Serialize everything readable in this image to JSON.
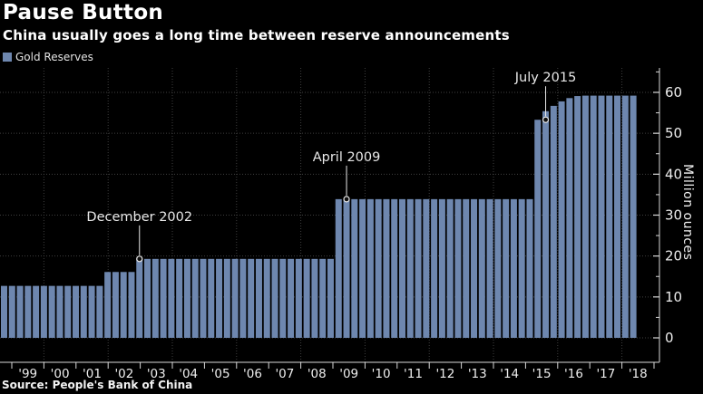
{
  "header": {
    "title": "Pause Button",
    "subtitle": "China usually goes a long time between reserve announcements"
  },
  "legend": {
    "label": "Gold Reserves"
  },
  "source": "Source: People's Bank of China",
  "colors": {
    "background": "#000000",
    "bar": "#6E87AF",
    "grid": "#3f3f3f",
    "axis": "#d9d9d9",
    "tick_label": "#ededed",
    "annotation": "#e8e8e8",
    "marker_fill": "#101010"
  },
  "chart_data": {
    "type": "bar",
    "title": "Pause Button",
    "subtitle": "China usually goes a long time between reserve announcements",
    "ylabel": "Million ounces",
    "ylim": [
      0,
      60
    ],
    "yticks": [
      0,
      10,
      20,
      30,
      40,
      50,
      60
    ],
    "grid": "dotted",
    "legend_position": "top-left",
    "frequency": "quarterly",
    "start_period": "1998-Q3",
    "end_period": "2018-Q3",
    "x_year_labels": [
      "'99",
      "'00",
      "'01",
      "'02",
      "'03",
      "'04",
      "'05",
      "'06",
      "'07",
      "'08",
      "'09",
      "'10",
      "'11",
      "'12",
      "'13",
      "'14",
      "'15",
      "'16",
      "'17",
      "'18"
    ],
    "series": [
      {
        "name": "Gold Reserves",
        "values": [
          12.7,
          12.7,
          12.7,
          12.7,
          12.7,
          12.7,
          12.7,
          12.7,
          12.7,
          12.7,
          12.7,
          12.7,
          12.7,
          16.1,
          16.1,
          16.1,
          16.1,
          19.3,
          19.3,
          19.3,
          19.3,
          19.3,
          19.3,
          19.3,
          19.3,
          19.3,
          19.3,
          19.3,
          19.3,
          19.3,
          19.3,
          19.3,
          19.3,
          19.3,
          19.3,
          19.3,
          19.3,
          19.3,
          19.3,
          19.3,
          19.3,
          19.3,
          33.9,
          33.9,
          33.9,
          33.9,
          33.9,
          33.9,
          33.9,
          33.9,
          33.9,
          33.9,
          33.9,
          33.9,
          33.9,
          33.9,
          33.9,
          33.9,
          33.9,
          33.9,
          33.9,
          33.9,
          33.9,
          33.9,
          33.9,
          33.9,
          33.9,
          53.3,
          55.4,
          56.7,
          57.8,
          58.6,
          59.1,
          59.2,
          59.2,
          59.2,
          59.2,
          59.2,
          59.2,
          59.2
        ]
      }
    ],
    "annotations": [
      {
        "label": "December 2002",
        "bar_index": 17,
        "value": 19.3
      },
      {
        "label": "April 2009",
        "bar_index": 43,
        "value": 33.9
      },
      {
        "label": "July 2015",
        "bar_index": 68,
        "value": 53.3
      }
    ]
  }
}
